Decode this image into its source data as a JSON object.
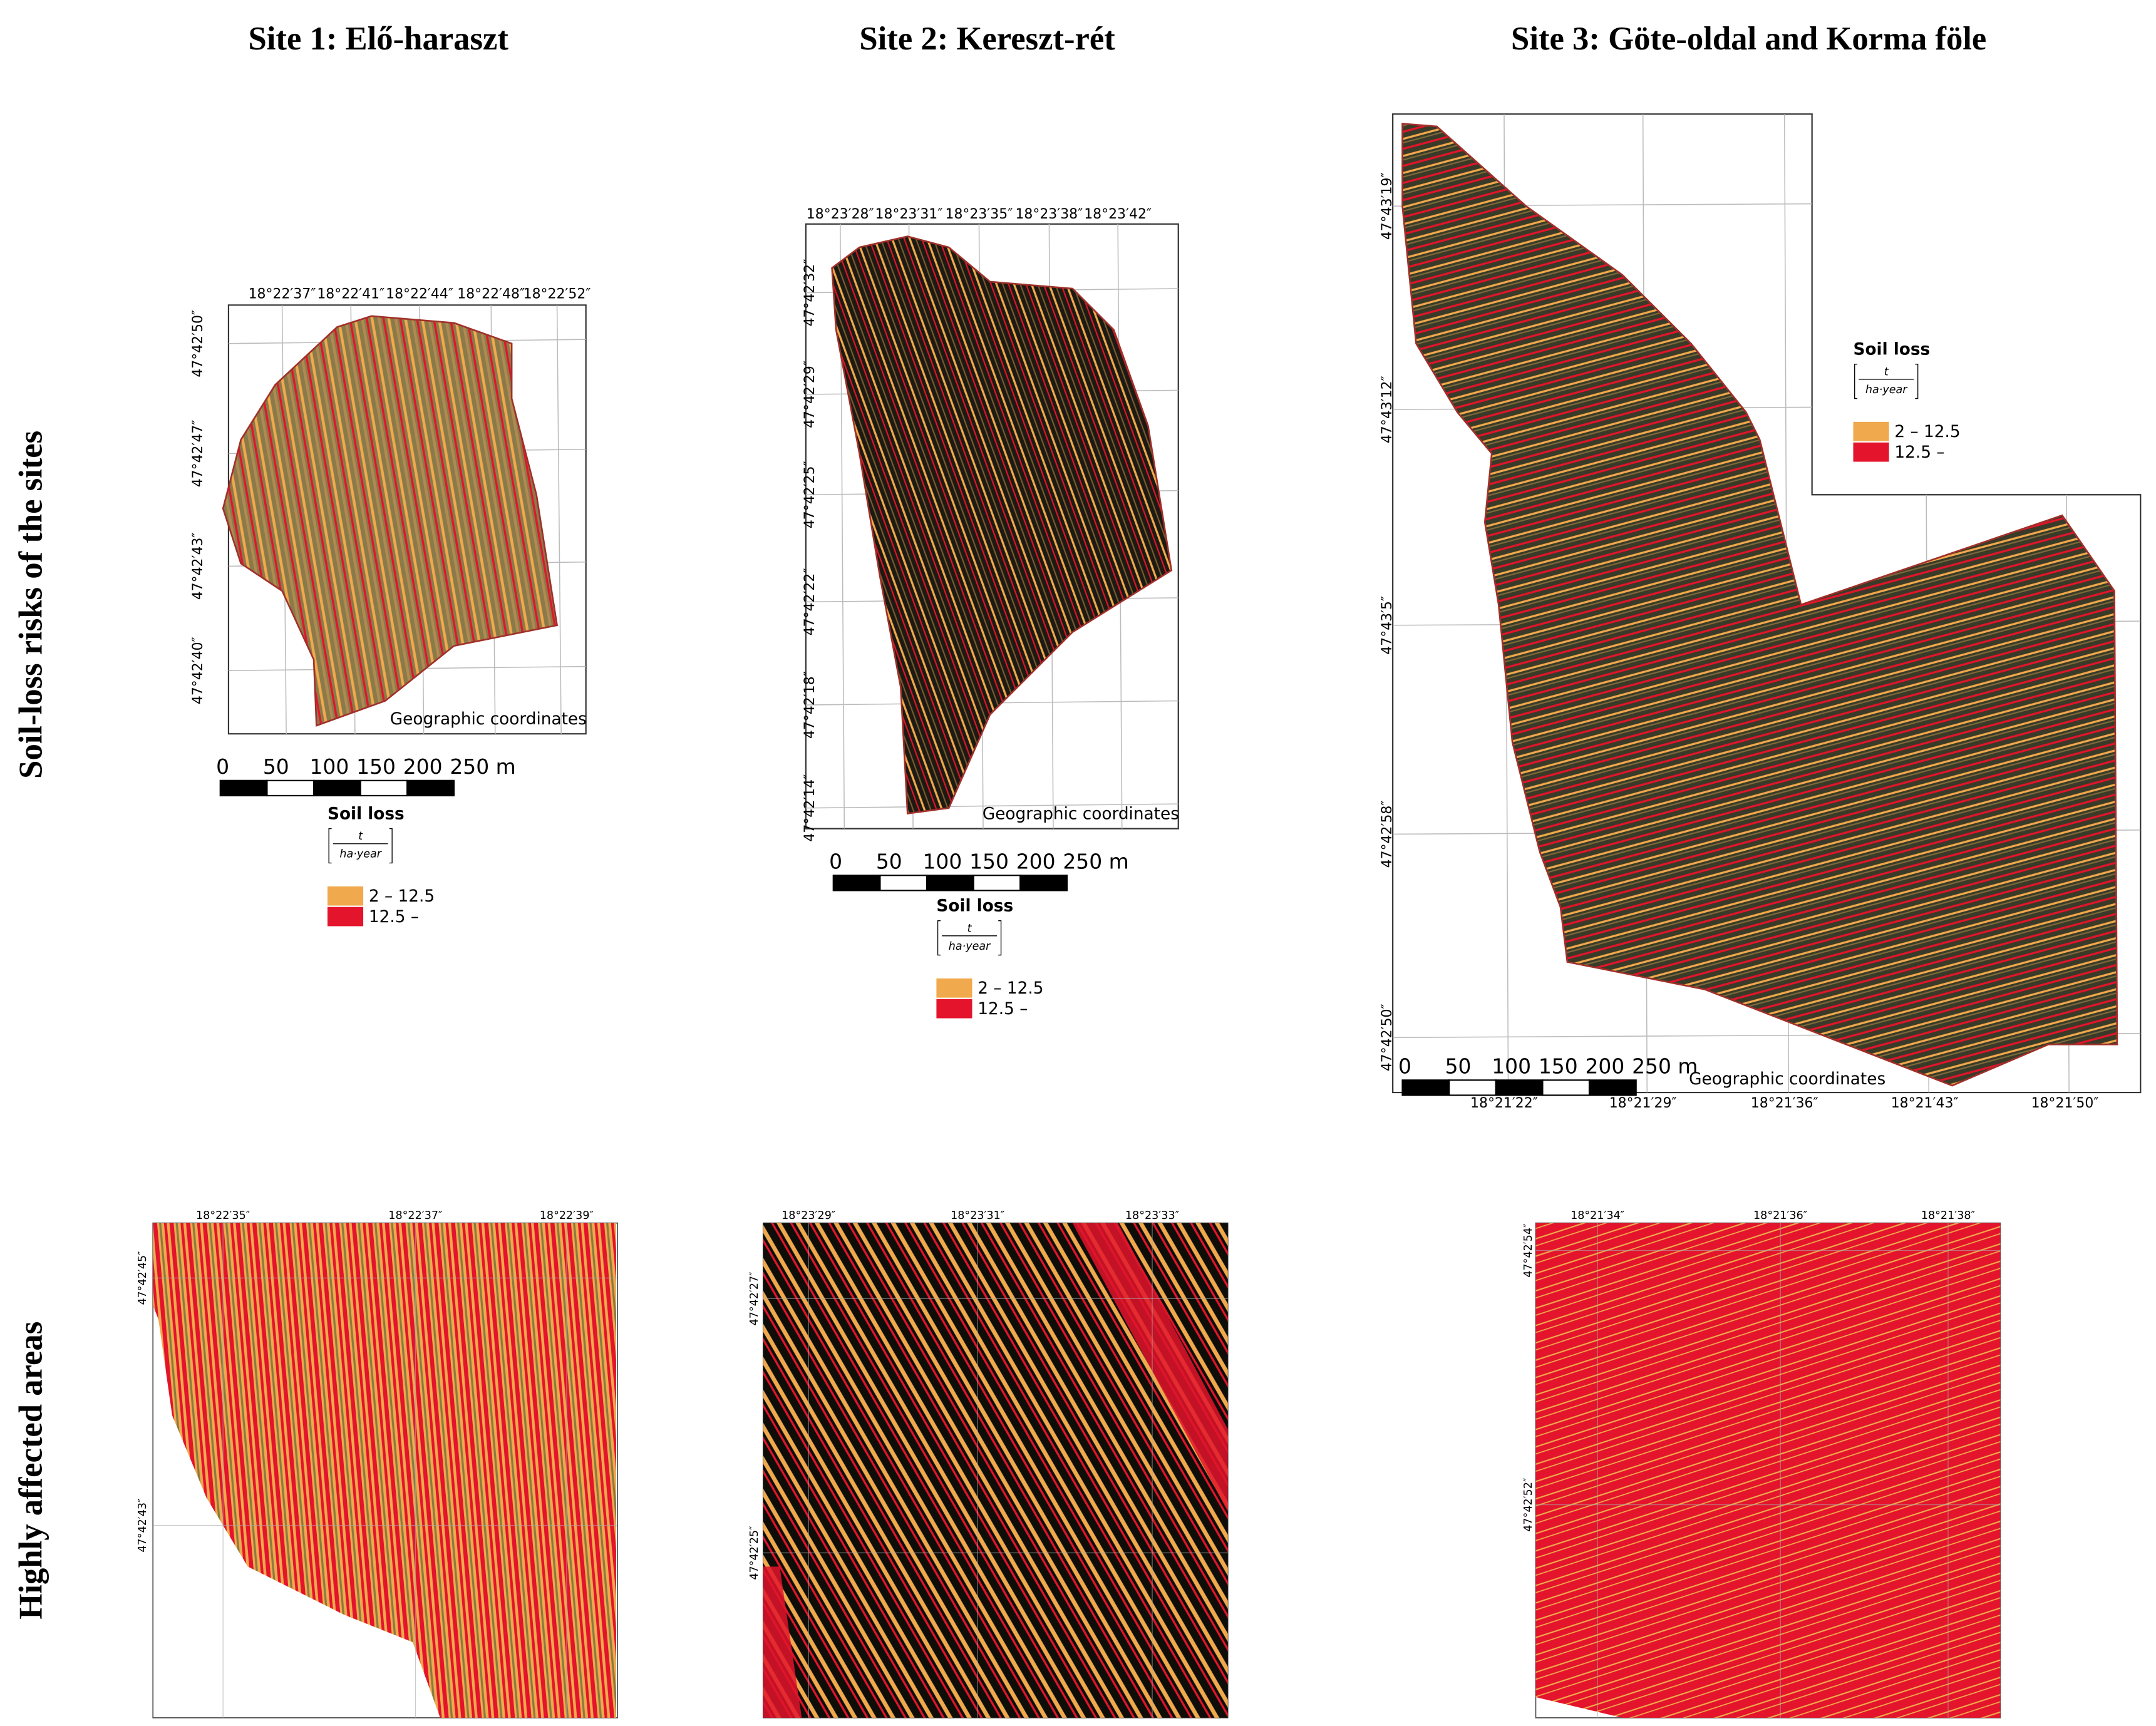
{
  "row_labels": [
    "Soil-loss risks of the sites",
    "Highly affected areas"
  ],
  "sites": [
    {
      "title": "Site 1: Elő-haraszt",
      "map": {
        "lon_labels": [
          "18°22′37″",
          "18°22′41″",
          "18°22′44″",
          "18°22′48″",
          "18°22′52″"
        ],
        "lat_labels": [
          "47°42′50″",
          "47°42′47″",
          "47°42′43″",
          "47°42′40″"
        ],
        "note": "Geographic coordinates",
        "scale_labels": [
          "0",
          "50",
          "100",
          "150",
          "200",
          "250 m"
        ],
        "legend": {
          "title": "Soil loss",
          "unit_numerator": "t",
          "unit_denominator": "ha·year",
          "items": [
            {
              "label": "2 – 12.5",
              "color": "#f0a94c"
            },
            {
              "label": "12.5 –",
              "color": "#e3142b"
            }
          ]
        }
      },
      "zoom": {
        "lon_labels": [
          "18°22′35″",
          "18°22′37″",
          "18°22′39″"
        ],
        "lat_labels": [
          "47°42′45″",
          "47°42′43″"
        ]
      }
    },
    {
      "title": "Site 2: Kereszt-rét",
      "map": {
        "lon_labels": [
          "18°23′28″",
          "18°23′31″",
          "18°23′35″",
          "18°23′38″",
          "18°23′42″"
        ],
        "lat_labels": [
          "47°42′32″",
          "47°42′29″",
          "47°42′25″",
          "47°42′22″",
          "47°42′18″",
          "47°42′14″"
        ],
        "note": "Geographic coordinates",
        "scale_labels": [
          "0",
          "50",
          "100",
          "150",
          "200",
          "250 m"
        ],
        "legend": {
          "title": "Soil loss",
          "unit_numerator": "t",
          "unit_denominator": "ha·year",
          "items": [
            {
              "label": "2 – 12.5",
              "color": "#f0a94c"
            },
            {
              "label": "12.5 –",
              "color": "#e3142b"
            }
          ]
        }
      },
      "zoom": {
        "lon_labels": [
          "18°23′29″",
          "18°23′31″",
          "18°23′33″"
        ],
        "lat_labels": [
          "47°42′27″",
          "47°42′25″"
        ]
      }
    },
    {
      "title": "Site 3: Göte-oldal and Korma föle",
      "map": {
        "lon_labels": [
          "18°21′22″",
          "18°21′29″",
          "18°21′36″",
          "18°21′43″",
          "18°21′50″"
        ],
        "lat_labels": [
          "47°43′19″",
          "47°43′12″",
          "47°43′5″",
          "47°42′58″",
          "47°42′50″"
        ],
        "note": "Geographic coordinates",
        "scale_labels": [
          "0",
          "50",
          "100",
          "150",
          "200",
          "250 m"
        ],
        "legend": {
          "title": "Soil loss",
          "unit_numerator": "t",
          "unit_denominator": "ha·year",
          "items": [
            {
              "label": "2 – 12.5",
              "color": "#f0a94c"
            },
            {
              "label": "12.5 –",
              "color": "#e3142b"
            }
          ]
        }
      },
      "zoom": {
        "lon_labels": [
          "18°21′34″",
          "18°21′36″",
          "18°21′38″"
        ],
        "lat_labels": [
          "47°42′54″",
          "47°42′52″"
        ]
      }
    }
  ]
}
